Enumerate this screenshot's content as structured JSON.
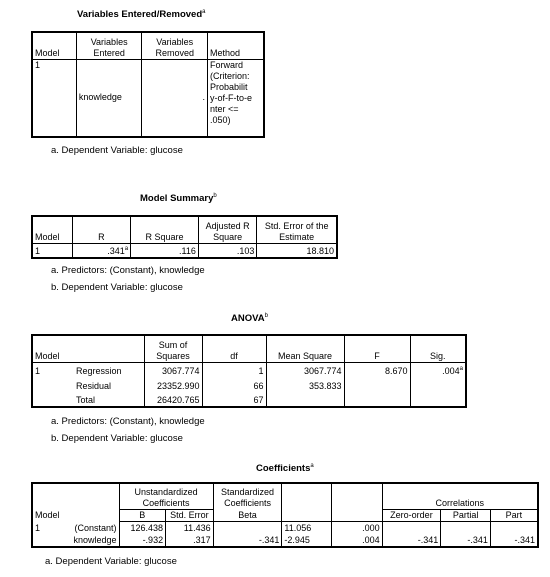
{
  "variables_entered": {
    "title": "Variables Entered/Removed",
    "title_sup": "a",
    "headers": [
      "Model",
      "Variables Entered",
      "Variables Removed",
      "Method"
    ],
    "row": {
      "model": "1",
      "entered": "knowledge",
      "removed": ".",
      "method_lines": [
        "Forward",
        "(Criterion:",
        "Probabilit",
        "y-of-F-to-e",
        "nter <=",
        ".050)"
      ]
    },
    "footnote": "a. Dependent Variable: glucose"
  },
  "model_summary": {
    "title": "Model Summary",
    "title_sup": "b",
    "headers": [
      "Model",
      "R",
      "R Square",
      "Adjusted R Square",
      "Std. Error of the Estimate"
    ],
    "row": {
      "model": "1",
      "r": ".341",
      "r_sup": "a",
      "r_square": ".116",
      "adj_r_square": ".103",
      "std_error": "18.810"
    },
    "footnotes": [
      "a. Predictors: (Constant), knowledge",
      "b. Dependent Variable: glucose"
    ]
  },
  "anova": {
    "title": "ANOVA",
    "title_sup": "b",
    "headers": {
      "model": "Model",
      "ss": "Sum of Squares",
      "df": "df",
      "ms": "Mean Square",
      "f": "F",
      "sig": "Sig."
    },
    "rows": [
      {
        "model": "1",
        "source": "Regression",
        "ss": "3067.774",
        "df": "1",
        "ms": "3067.774",
        "f": "8.670",
        "sig": ".004",
        "sig_sup": "a"
      },
      {
        "model": "",
        "source": "Residual",
        "ss": "23352.990",
        "df": "66",
        "ms": "353.833",
        "f": "",
        "sig": "",
        "sig_sup": ""
      },
      {
        "model": "",
        "source": "Total",
        "ss": "26420.765",
        "df": "67",
        "ms": "",
        "f": "",
        "sig": "",
        "sig_sup": ""
      }
    ],
    "footnotes": [
      "a. Predictors: (Constant), knowledge",
      "b. Dependent Variable: glucose"
    ]
  },
  "coefficients": {
    "title": "Coefficients",
    "title_sup": "a",
    "group_headers": {
      "unstd": "Unstandardized Coefficients",
      "std": "Standardized Coefficients",
      "corr": "Correlations"
    },
    "headers": {
      "model": "Model",
      "b": "B",
      "se": "Std. Error",
      "beta": "Beta",
      "t": "t",
      "sig": "Sig.",
      "zero": "Zero-order",
      "partial": "Partial",
      "part": "Part"
    },
    "rows": [
      {
        "model": "1",
        "term": "(Constant)",
        "b": "126.438",
        "se": "11.436",
        "beta": "",
        "t": "11.056",
        "sig": ".000",
        "zero": "",
        "partial": "",
        "part": ""
      },
      {
        "model": "",
        "term": "knowledge",
        "b": "-.932",
        "se": ".317",
        "beta": "-.341",
        "t": "-2.945",
        "sig": ".004",
        "zero": "-.341",
        "partial": "-.341",
        "part": "-.341"
      }
    ],
    "footnote": "a. Dependent Variable: glucose"
  }
}
